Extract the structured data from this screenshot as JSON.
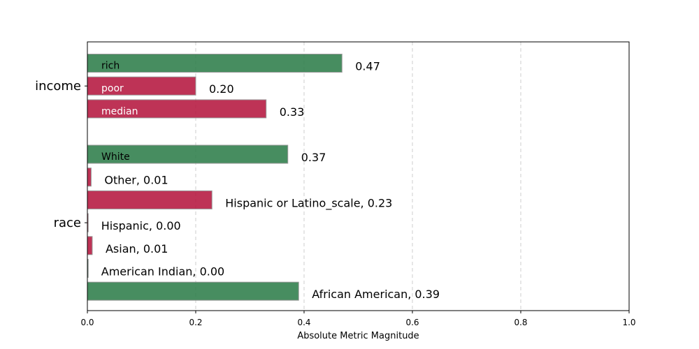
{
  "chart_data": {
    "type": "bar",
    "orientation": "horizontal",
    "xlabel": "Absolute Metric Magnitude",
    "xlim": [
      0,
      1.0
    ],
    "xticks": [
      "0.0",
      "0.2",
      "0.4",
      "0.6",
      "0.8",
      "1.0"
    ],
    "grid": "vertical dashed",
    "colors": {
      "positive": "#2e7d4a",
      "negative": "#b5173f"
    },
    "groups": [
      {
        "name": "income",
        "bars": [
          {
            "label": "rich",
            "value": 0.47,
            "value_text": "0.47",
            "color": "positive",
            "label_inside": true
          },
          {
            "label": "poor",
            "value": 0.2,
            "value_text": "0.20",
            "color": "negative",
            "label_inside": true
          },
          {
            "label": "median",
            "value": 0.33,
            "value_text": "0.33",
            "color": "negative",
            "label_inside": true
          }
        ]
      },
      {
        "name": "race",
        "bars": [
          {
            "label": "White",
            "value": 0.37,
            "value_text": "0.37",
            "color": "positive",
            "label_inside": true
          },
          {
            "label": "Other",
            "value": 0.007,
            "value_text": "Other, 0.01",
            "color": "negative",
            "label_inside": false
          },
          {
            "label": "Hispanic or Latino_scale",
            "value": 0.23,
            "value_text": "Hispanic or Latino_scale, 0.23",
            "color": "negative",
            "label_inside": false
          },
          {
            "label": "Hispanic",
            "value": 0.001,
            "value_text": "Hispanic, 0.00",
            "color": "negative",
            "label_inside": false
          },
          {
            "label": "Asian",
            "value": 0.009,
            "value_text": "Asian, 0.01",
            "color": "negative",
            "label_inside": false
          },
          {
            "label": "American Indian",
            "value": 0.001,
            "value_text": "American Indian, 0.00",
            "color": "positive",
            "label_inside": false
          },
          {
            "label": "African American",
            "value": 0.39,
            "value_text": "African American, 0.39",
            "color": "positive",
            "label_inside": false
          }
        ]
      }
    ]
  }
}
